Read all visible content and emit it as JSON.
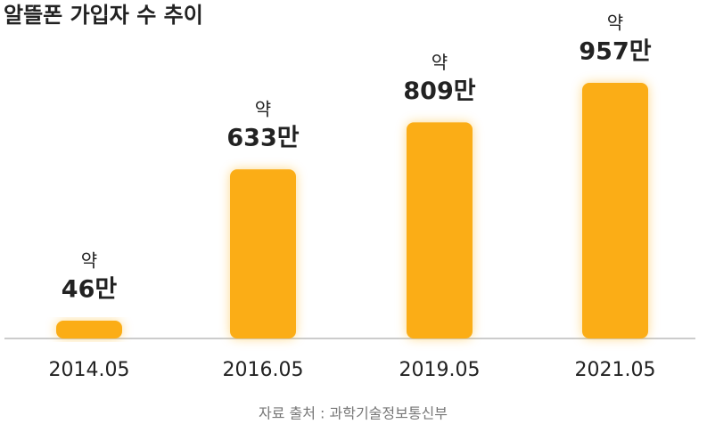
{
  "chart_data": {
    "type": "bar",
    "title": "알뜰폰 가입자 수 추이",
    "categories": [
      "2014.05",
      "2016.05",
      "2019.05",
      "2021.05"
    ],
    "values": [
      46,
      633,
      809,
      957
    ],
    "value_labels": [
      "46만",
      "633만",
      "809만",
      "957만"
    ],
    "value_label_prefix": "약",
    "color": "#fbad18",
    "source": "자료 출처 : 과학기술정보통신부"
  }
}
